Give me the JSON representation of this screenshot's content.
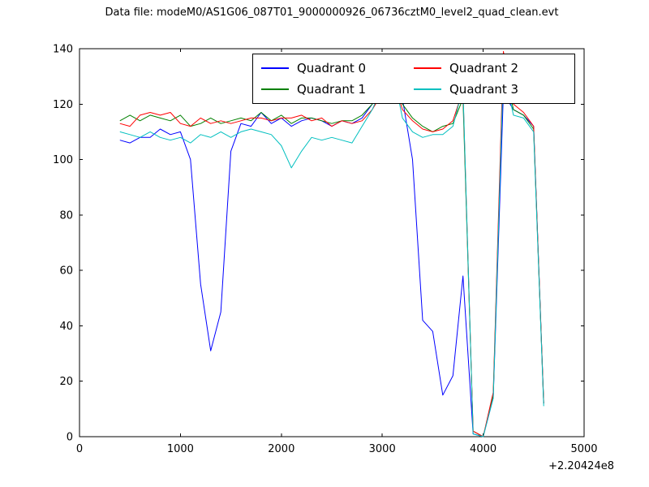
{
  "figure": {
    "title": "Data file: modeM0/AS1G06_087T01_9000000926_06736cztM0_level2_quad_clean.evt"
  },
  "legend": {
    "entries": [
      {
        "label": "Quadrant 0",
        "color": "#0000ff"
      },
      {
        "label": "Quadrant 1",
        "color": "#008000"
      },
      {
        "label": "Quadrant 2",
        "color": "#ff0000"
      },
      {
        "label": "Quadrant 3",
        "color": "#00bfbf"
      }
    ]
  },
  "chart_data": {
    "type": "line",
    "title": "Data file: modeM0/AS1G06_087T01_9000000926_06736cztM0_level2_quad_clean.evt",
    "xlabel": "",
    "ylabel": "",
    "xlim": [
      0,
      5000
    ],
    "ylim": [
      0,
      140
    ],
    "grid": false,
    "legend_position": "upper center",
    "x_offset": "+2.20424e8",
    "x_tick_labels": [
      "0",
      "1000",
      "2000",
      "3000",
      "4000",
      "5000"
    ],
    "y_tick_labels": [
      "0",
      "20",
      "40",
      "60",
      "80",
      "100",
      "120",
      "140"
    ],
    "x": [
      400,
      500,
      600,
      700,
      800,
      900,
      1000,
      1100,
      1200,
      1300,
      1400,
      1500,
      1600,
      1700,
      1800,
      1900,
      2000,
      2100,
      2200,
      2300,
      2400,
      2500,
      2600,
      2700,
      2800,
      2900,
      3000,
      3100,
      3200,
      3300,
      3400,
      3500,
      3600,
      3700,
      3800,
      3900,
      4000,
      4100,
      4200,
      4300,
      4400,
      4500,
      4600
    ],
    "series": [
      {
        "name": "Quadrant 0",
        "color": "#0000ff",
        "values": [
          107,
          106,
          108,
          108,
          111,
          109,
          110,
          100,
          55,
          31,
          45,
          103,
          113,
          112,
          117,
          113,
          115,
          112,
          114,
          115,
          114,
          112,
          114,
          113,
          115,
          120,
          128,
          135,
          122,
          100,
          42,
          38,
          15,
          22,
          58,
          1,
          0,
          14,
          124,
          118,
          116,
          112,
          12
        ]
      },
      {
        "name": "Quadrant 1",
        "color": "#008000",
        "values": [
          114,
          116,
          114,
          116,
          115,
          114,
          116,
          112,
          113,
          115,
          113,
          114,
          115,
          114,
          117,
          114,
          116,
          113,
          115,
          115,
          114,
          113,
          114,
          114,
          116,
          120,
          126,
          133,
          120,
          115,
          112,
          110,
          112,
          113,
          122,
          2,
          0,
          15,
          135,
          118,
          116,
          111,
          12
        ]
      },
      {
        "name": "Quadrant 2",
        "color": "#ff0000",
        "values": [
          113,
          112,
          116,
          117,
          116,
          117,
          113,
          112,
          115,
          113,
          114,
          113,
          114,
          115,
          115,
          114,
          115,
          115,
          116,
          114,
          115,
          112,
          114,
          113,
          114,
          118,
          124,
          130,
          118,
          114,
          111,
          110,
          111,
          114,
          125,
          2,
          0,
          16,
          139,
          120,
          117,
          112,
          12
        ]
      },
      {
        "name": "Quadrant 3",
        "color": "#00bfbf",
        "values": [
          110,
          109,
          108,
          110,
          108,
          107,
          108,
          106,
          109,
          108,
          110,
          108,
          110,
          111,
          110,
          109,
          105,
          97,
          103,
          108,
          107,
          108,
          107,
          106,
          112,
          118,
          126,
          133,
          115,
          110,
          108,
          109,
          109,
          112,
          126,
          1,
          0,
          14,
          133,
          116,
          115,
          110,
          11
        ]
      }
    ]
  }
}
